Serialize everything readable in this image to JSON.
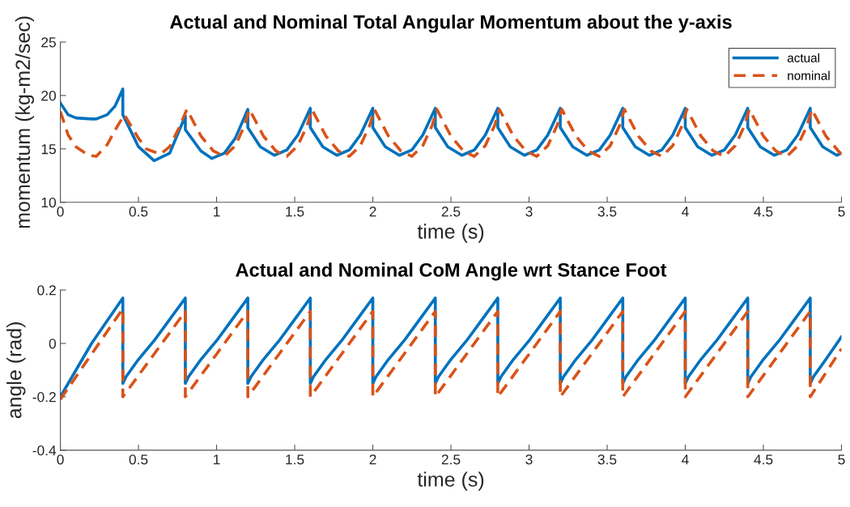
{
  "chart_data": [
    {
      "type": "line",
      "title": "Actual and Nominal Total Angular Momentum about the y-axis",
      "xlabel": "time (s)",
      "ylabel": "momentum (kg-m2/sec)",
      "xlim": [
        0,
        5
      ],
      "xticks": [
        0,
        0.5,
        1,
        1.5,
        2,
        2.5,
        3,
        3.5,
        4,
        4.5,
        5
      ],
      "ylim": [
        10,
        25
      ],
      "yticks": [
        10,
        15,
        20,
        25
      ],
      "legend": "top right",
      "series": [
        {
          "name": "actual",
          "color": "#0072bd",
          "line_style": "solid",
          "x": [
            0,
            0.05,
            0.1,
            0.2,
            0.23,
            0.3,
            0.35,
            0.4,
            0.4,
            0.5,
            0.6,
            0.7,
            0.8,
            0.8,
            0.9,
            0.97,
            1.05,
            1.12,
            1.2,
            1.2,
            1.28,
            1.37,
            1.45,
            1.52,
            1.6,
            1.6,
            1.68,
            1.77,
            1.85,
            1.92,
            2.0,
            2.0,
            2.08,
            2.17,
            2.25,
            2.32,
            2.4,
            2.4,
            2.48,
            2.57,
            2.65,
            2.72,
            2.8,
            2.8,
            2.88,
            2.97,
            3.05,
            3.12,
            3.2,
            3.2,
            3.28,
            3.37,
            3.45,
            3.52,
            3.6,
            3.6,
            3.68,
            3.77,
            3.85,
            3.92,
            4.0,
            4.0,
            4.08,
            4.17,
            4.25,
            4.32,
            4.4,
            4.4,
            4.48,
            4.57,
            4.65,
            4.72,
            4.8,
            4.8,
            4.88,
            4.97,
            5.0
          ],
          "values": [
            19.3,
            18.2,
            17.9,
            17.8,
            17.8,
            18.2,
            19.0,
            20.6,
            18.2,
            15.2,
            13.9,
            14.6,
            18.1,
            16.8,
            14.8,
            14.1,
            14.6,
            16.0,
            18.7,
            17.0,
            15.2,
            14.4,
            14.9,
            16.3,
            18.8,
            17.0,
            15.2,
            14.4,
            14.9,
            16.3,
            18.8,
            17.0,
            15.2,
            14.4,
            14.9,
            16.3,
            18.8,
            17.0,
            15.2,
            14.4,
            14.9,
            16.3,
            18.8,
            17.0,
            15.2,
            14.4,
            14.9,
            16.3,
            18.8,
            17.0,
            15.2,
            14.4,
            14.9,
            16.3,
            18.8,
            17.0,
            15.2,
            14.4,
            14.9,
            16.3,
            18.8,
            17.0,
            15.2,
            14.4,
            14.9,
            16.3,
            18.8,
            17.0,
            15.2,
            14.4,
            14.9,
            16.3,
            18.8,
            17.0,
            15.2,
            14.4,
            14.6
          ]
        },
        {
          "name": "nominal",
          "color": "#d95319",
          "line_style": "dashed",
          "x": [
            0,
            0.05,
            0.1,
            0.18,
            0.23,
            0.3,
            0.36,
            0.41,
            0.5,
            0.55,
            0.64,
            0.7,
            0.76,
            0.81,
            0.9,
            0.98,
            1.05,
            1.12,
            1.18,
            1.21,
            1.3,
            1.38,
            1.45,
            1.52,
            1.58,
            1.61,
            1.7,
            1.78,
            1.85,
            1.92,
            1.98,
            2.01,
            2.1,
            2.18,
            2.25,
            2.32,
            2.38,
            2.41,
            2.5,
            2.58,
            2.65,
            2.72,
            2.78,
            2.81,
            2.9,
            2.98,
            3.05,
            3.12,
            3.18,
            3.21,
            3.3,
            3.38,
            3.45,
            3.52,
            3.58,
            3.61,
            3.7,
            3.78,
            3.85,
            3.92,
            3.98,
            4.01,
            4.1,
            4.18,
            4.25,
            4.32,
            4.38,
            4.41,
            4.5,
            4.58,
            4.65,
            4.72,
            4.78,
            4.81,
            4.9,
            4.98,
            5.0
          ],
          "values": [
            18.5,
            16.3,
            15.2,
            14.4,
            14.3,
            15.4,
            17.0,
            18.2,
            16.0,
            15.0,
            14.5,
            15.2,
            17.0,
            18.7,
            16.2,
            14.8,
            14.3,
            15.3,
            17.2,
            18.7,
            16.2,
            14.8,
            14.3,
            15.3,
            17.2,
            18.7,
            16.2,
            14.8,
            14.3,
            15.3,
            17.2,
            18.7,
            16.2,
            14.8,
            14.3,
            15.3,
            17.2,
            18.7,
            16.2,
            14.8,
            14.3,
            15.3,
            17.2,
            18.7,
            16.2,
            14.8,
            14.3,
            15.3,
            17.2,
            18.7,
            16.2,
            14.8,
            14.3,
            15.3,
            17.2,
            18.7,
            16.2,
            14.8,
            14.3,
            15.3,
            17.2,
            18.7,
            16.2,
            14.8,
            14.3,
            15.3,
            17.2,
            18.7,
            16.2,
            14.8,
            14.3,
            15.3,
            17.2,
            18.7,
            16.2,
            14.8,
            14.5
          ]
        }
      ]
    },
    {
      "type": "line",
      "title": "Actual and Nominal CoM Angle wrt Stance Foot",
      "xlabel": "time (s)",
      "ylabel": "angle (rad)",
      "xlim": [
        0,
        5
      ],
      "xticks": [
        0,
        0.5,
        1,
        1.5,
        2,
        2.5,
        3,
        3.5,
        4,
        4.5,
        5
      ],
      "ylim": [
        -0.4,
        0.2
      ],
      "yticks": [
        -0.4,
        -0.2,
        0,
        0.2
      ],
      "series": [
        {
          "color": "#0072bd",
          "line_style": "solid",
          "x": [
            0,
            0.2,
            0.4,
            0.4,
            0.42,
            0.5,
            0.6,
            0.7,
            0.8,
            0.8,
            0.82,
            0.9,
            1.0,
            1.1,
            1.2,
            1.2,
            1.22,
            1.3,
            1.4,
            1.5,
            1.6,
            1.6,
            1.62,
            1.7,
            1.8,
            1.9,
            2.0,
            2.0,
            2.02,
            2.1,
            2.2,
            2.3,
            2.4,
            2.4,
            2.42,
            2.5,
            2.6,
            2.7,
            2.8,
            2.8,
            2.82,
            2.9,
            3.0,
            3.1,
            3.2,
            3.2,
            3.22,
            3.3,
            3.4,
            3.5,
            3.6,
            3.6,
            3.62,
            3.7,
            3.8,
            3.9,
            4.0,
            4.0,
            4.02,
            4.1,
            4.2,
            4.3,
            4.4,
            4.4,
            4.42,
            4.5,
            4.6,
            4.7,
            4.8,
            4.8,
            4.82,
            4.9,
            5.0
          ],
          "values": [
            -0.2,
            0.0,
            0.17,
            -0.15,
            -0.125,
            -0.06,
            0.01,
            0.09,
            0.17,
            -0.15,
            -0.125,
            -0.06,
            0.01,
            0.09,
            0.17,
            -0.15,
            -0.125,
            -0.06,
            0.01,
            0.09,
            0.17,
            -0.15,
            -0.125,
            -0.06,
            0.01,
            0.09,
            0.17,
            -0.15,
            -0.125,
            -0.06,
            0.01,
            0.09,
            0.17,
            -0.15,
            -0.125,
            -0.06,
            0.01,
            0.09,
            0.17,
            -0.15,
            -0.125,
            -0.06,
            0.01,
            0.09,
            0.17,
            -0.15,
            -0.125,
            -0.06,
            0.01,
            0.09,
            0.17,
            -0.15,
            -0.125,
            -0.06,
            0.01,
            0.09,
            0.17,
            -0.15,
            -0.125,
            -0.06,
            0.01,
            0.09,
            0.17,
            -0.15,
            -0.125,
            -0.06,
            0.01,
            0.09,
            0.17,
            -0.15,
            -0.125,
            -0.06,
            0.025
          ]
        },
        {
          "color": "#d95319",
          "line_style": "dashed",
          "x": [
            0,
            0.2,
            0.4,
            0.4,
            0.5,
            0.6,
            0.7,
            0.8,
            0.8,
            0.9,
            1.0,
            1.1,
            1.2,
            1.2,
            1.3,
            1.4,
            1.5,
            1.6,
            1.6,
            1.7,
            1.8,
            1.9,
            2.0,
            2.0,
            2.1,
            2.2,
            2.3,
            2.4,
            2.4,
            2.5,
            2.6,
            2.7,
            2.8,
            2.8,
            2.9,
            3.0,
            3.1,
            3.2,
            3.2,
            3.3,
            3.4,
            3.5,
            3.6,
            3.6,
            3.7,
            3.8,
            3.9,
            4.0,
            4.0,
            4.1,
            4.2,
            4.3,
            4.4,
            4.4,
            4.5,
            4.6,
            4.7,
            4.8,
            4.8,
            4.9,
            5.0
          ],
          "values": [
            -0.21,
            -0.04,
            0.13,
            -0.2,
            -0.12,
            -0.04,
            0.04,
            0.12,
            -0.2,
            -0.12,
            -0.04,
            0.04,
            0.12,
            -0.2,
            -0.12,
            -0.04,
            0.04,
            0.12,
            -0.2,
            -0.12,
            -0.04,
            0.04,
            0.12,
            -0.2,
            -0.12,
            -0.04,
            0.04,
            0.12,
            -0.2,
            -0.12,
            -0.04,
            0.04,
            0.12,
            -0.2,
            -0.12,
            -0.04,
            0.04,
            0.12,
            -0.2,
            -0.12,
            -0.04,
            0.04,
            0.12,
            -0.2,
            -0.12,
            -0.04,
            0.04,
            0.12,
            -0.2,
            -0.12,
            -0.04,
            0.04,
            0.12,
            -0.2,
            -0.12,
            -0.04,
            0.04,
            0.12,
            -0.2,
            -0.11,
            -0.02
          ]
        }
      ]
    }
  ]
}
